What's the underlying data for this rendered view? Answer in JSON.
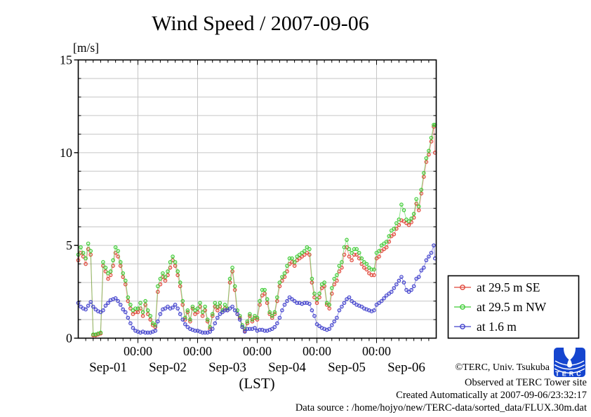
{
  "title": "Wind Speed / 2007-09-06",
  "y_axis": {
    "unit_label": "[m/s]",
    "ticks": [
      0,
      5,
      10,
      15
    ],
    "max": 15,
    "minor_step": 1
  },
  "x_axis": {
    "axis_label": "(LST)",
    "time_tick_label": "00:00",
    "time_tick_hours": [
      24,
      48,
      72,
      96,
      120
    ],
    "day_labels": [
      "Sep-01",
      "Sep-02",
      "Sep-03",
      "Sep-04",
      "Sep-05",
      "Sep-06"
    ]
  },
  "legend": [
    {
      "label": "at 29.5 m SE",
      "color": "#e04538"
    },
    {
      "label": "at 29.5 m NW",
      "color": "#3ecc35"
    },
    {
      "label": "at 1.6 m",
      "color": "#4040cc"
    }
  ],
  "footer": {
    "lines": [
      "©TERC, Univ. Tsukuba",
      "Observed at TERC Tower site",
      "Created Automatically at 2007-09-06/23:32:17",
      "Data source : /home/hojyo/new/TERC-data/sorted_data/FLUX.30m.dat"
    ],
    "logo_text": "TERC",
    "logo_color": "#1545cf"
  },
  "chart_data": {
    "type": "line",
    "title": "Wind Speed / 2007-09-06",
    "xlabel": "(LST)",
    "ylabel": "[m/s]",
    "ylim": [
      0,
      15
    ],
    "x_unit": "hours since 2007-09-01 00:00 LST (hourly samples, last point 143.5 h = Sep-06 23:30)",
    "x_start": 0,
    "x_step": 1,
    "x_last": 143.5,
    "x_range_hours": [
      0,
      144
    ],
    "grid": true,
    "legend_position": "outside-right-bottom",
    "series": [
      {
        "name": "at 29.5 m SE",
        "color": "#e04538",
        "values": [
          4.2,
          4.6,
          4.4,
          4.0,
          4.8,
          4.5,
          0.15,
          0.15,
          0.2,
          0.25,
          3.9,
          3.6,
          3.2,
          3.4,
          3.9,
          4.6,
          4.4,
          3.9,
          3.3,
          2.9,
          2.0,
          1.6,
          1.3,
          1.4,
          1.4,
          1.6,
          1.2,
          1.8,
          1.3,
          1.0,
          0.7,
          0.6,
          2.5,
          2.9,
          3.3,
          3.1,
          3.4,
          3.8,
          4.2,
          3.9,
          3.4,
          2.8,
          1.8,
          1.0,
          1.4,
          0.9,
          1.6,
          1.3,
          1.4,
          1.7,
          1.2,
          1.5,
          0.9,
          0.5,
          1.2,
          1.7,
          1.5,
          1.7,
          1.4,
          1.6,
          1.5,
          3.0,
          3.6,
          2.6,
          1.3,
          1.1,
          0.6,
          0.4,
          0.8,
          1.2,
          0.9,
          1.1,
          1.0,
          1.8,
          2.3,
          2.4,
          1.9,
          1.3,
          1.1,
          1.3,
          2.0,
          2.8,
          3.1,
          3.3,
          3.6,
          4.0,
          4.1,
          3.9,
          4.2,
          4.3,
          4.4,
          4.5,
          4.6,
          4.5,
          3.0,
          2.2,
          1.9,
          2.2,
          2.7,
          2.8,
          1.8,
          1.6,
          2.4,
          2.9,
          3.1,
          3.6,
          3.8,
          4.5,
          4.9,
          4.4,
          4.2,
          4.5,
          4.5,
          4.3,
          4.0,
          3.8,
          3.7,
          3.5,
          3.4,
          3.4,
          4.3,
          4.4,
          4.7,
          4.8,
          4.9,
          5.2,
          5.5,
          5.6,
          5.9,
          6.1,
          6.35,
          6.3,
          6.2,
          6.1,
          6.25,
          6.5,
          7.25,
          6.9,
          7.8,
          8.7,
          9.5,
          9.9,
          10.6,
          11.4,
          10.0
        ]
      },
      {
        "name": "at 29.5 m NW",
        "color": "#3ecc35",
        "values": [
          4.5,
          4.9,
          4.6,
          4.3,
          5.1,
          4.7,
          0.2,
          0.2,
          0.25,
          0.3,
          4.1,
          3.8,
          3.5,
          3.6,
          4.2,
          4.9,
          4.7,
          4.1,
          3.5,
          3.1,
          2.2,
          1.8,
          1.5,
          1.6,
          1.6,
          1.9,
          1.4,
          2.0,
          1.5,
          1.2,
          0.8,
          0.7,
          2.8,
          3.2,
          3.5,
          3.3,
          3.6,
          4.1,
          4.4,
          4.1,
          3.6,
          3.0,
          2.0,
          1.1,
          1.5,
          1.0,
          1.7,
          1.5,
          1.6,
          1.9,
          1.4,
          1.7,
          1.0,
          0.6,
          1.3,
          1.9,
          1.7,
          1.9,
          1.5,
          1.8,
          1.6,
          3.2,
          3.8,
          2.8,
          1.5,
          1.2,
          0.7,
          0.5,
          0.9,
          1.3,
          1.0,
          1.2,
          1.1,
          2.0,
          2.6,
          2.6,
          2.1,
          1.4,
          1.2,
          1.4,
          2.2,
          3.0,
          3.3,
          3.5,
          3.9,
          4.3,
          4.3,
          4.1,
          4.4,
          4.5,
          4.6,
          4.7,
          4.9,
          4.8,
          3.2,
          2.4,
          2.1,
          2.4,
          2.9,
          3.0,
          1.9,
          1.8,
          2.7,
          3.2,
          3.4,
          3.9,
          4.1,
          4.9,
          5.3,
          4.8,
          4.6,
          4.8,
          4.8,
          4.6,
          4.3,
          4.1,
          4.0,
          3.8,
          3.7,
          3.7,
          4.6,
          4.7,
          5.0,
          5.1,
          5.2,
          5.5,
          5.8,
          5.9,
          6.2,
          6.4,
          7.2,
          6.9,
          6.4,
          6.3,
          6.45,
          6.7,
          7.5,
          7.1,
          8.0,
          8.9,
          9.7,
          10.1,
          10.8,
          11.5,
          11.5
        ]
      },
      {
        "name": "at 1.6 m",
        "color": "#4040cc",
        "values": [
          1.9,
          1.7,
          1.6,
          1.55,
          1.75,
          1.95,
          1.7,
          1.55,
          1.45,
          1.4,
          1.5,
          1.75,
          1.9,
          2.05,
          2.1,
          2.15,
          2.0,
          1.8,
          1.55,
          1.4,
          1.1,
          0.8,
          0.55,
          0.4,
          0.35,
          0.3,
          0.35,
          0.3,
          0.3,
          0.3,
          0.35,
          0.4,
          0.9,
          1.3,
          1.55,
          1.6,
          1.7,
          1.6,
          1.65,
          1.8,
          1.6,
          1.3,
          1.0,
          0.75,
          0.6,
          0.5,
          0.45,
          0.4,
          0.4,
          0.35,
          0.3,
          0.3,
          0.3,
          0.35,
          0.5,
          0.8,
          1.1,
          1.3,
          1.4,
          1.5,
          1.5,
          1.6,
          1.7,
          1.5,
          1.3,
          1.0,
          0.6,
          0.35,
          0.5,
          0.5,
          0.5,
          0.55,
          0.4,
          0.45,
          0.45,
          0.4,
          0.4,
          0.45,
          0.5,
          0.6,
          0.8,
          1.1,
          1.5,
          1.8,
          2.0,
          2.2,
          2.1,
          2.0,
          1.9,
          1.9,
          1.85,
          1.9,
          1.9,
          1.85,
          1.5,
          1.2,
          0.75,
          0.65,
          0.55,
          0.5,
          0.45,
          0.5,
          0.7,
          0.9,
          1.1,
          1.5,
          1.7,
          1.9,
          2.1,
          2.2,
          2.0,
          1.9,
          1.8,
          1.75,
          1.7,
          1.6,
          1.55,
          1.5,
          1.45,
          1.5,
          1.8,
          1.9,
          2.0,
          2.15,
          2.3,
          2.4,
          2.5,
          2.7,
          2.9,
          3.1,
          3.3,
          3.0,
          2.6,
          2.5,
          2.6,
          2.8,
          3.2,
          3.3,
          3.65,
          3.8,
          4.2,
          4.4,
          4.6,
          5.0,
          4.3
        ]
      }
    ]
  }
}
